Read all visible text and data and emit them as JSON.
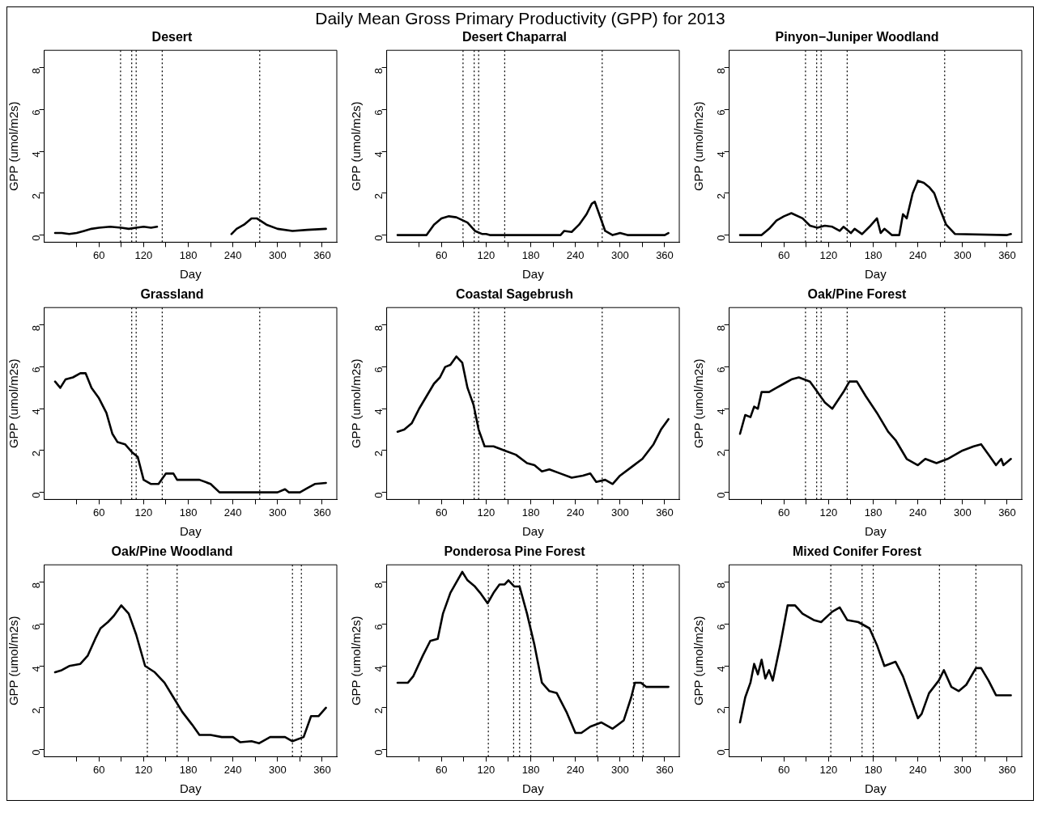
{
  "chart_data": [
    {
      "type": "line",
      "title": "Desert",
      "xlabel": "Day",
      "ylabel": "GPP (umol/m2s)",
      "annotations": [
        "Daily Mean Gross Primary Productivity (GPP) for 2013"
      ],
      "xlim": [
        -13.6,
        379.6
      ],
      "ylim": [
        -0.34,
        8.84
      ],
      "xticks": [
        {
          "value": 30,
          "label": null
        },
        60,
        {
          "value": 90,
          "label": null
        },
        120,
        {
          "value": 150,
          "label": null
        },
        180,
        {
          "value": 210,
          "label": null
        },
        240,
        {
          "value": 270,
          "label": null
        },
        300,
        {
          "value": 330,
          "label": null
        },
        360
      ],
      "yticks": [
        0,
        2,
        4,
        6,
        8
      ],
      "grid": false,
      "legend": false,
      "marker": "none",
      "line_style": "solid",
      "ref_lines": [
        {
          "axis": "x",
          "value": 89,
          "color": "#000000",
          "line_style": "dotted"
        },
        {
          "axis": "x",
          "value": 104,
          "color": "#000000",
          "line_style": "dotted"
        },
        {
          "axis": "x",
          "value": 110,
          "color": "#000000",
          "line_style": "dotted"
        },
        {
          "axis": "x",
          "value": 145,
          "color": "#000000",
          "line_style": "dotted"
        },
        {
          "axis": "x",
          "value": 276,
          "color": "#000000",
          "line_style": "dotted"
        }
      ],
      "x": [
        1,
        10,
        20,
        30,
        40,
        50,
        60,
        75,
        90,
        100,
        110,
        120,
        130,
        138,
        180,
        238,
        245,
        255,
        265,
        272,
        285,
        300,
        320,
        340,
        365
      ],
      "series": [
        {
          "color": "#000000",
          "values": [
            0.1,
            0.1,
            0.05,
            0.1,
            0.2,
            0.3,
            0.35,
            0.4,
            0.35,
            0.3,
            0.35,
            0.4,
            0.35,
            0.4,
            null,
            0.05,
            0.3,
            0.5,
            0.8,
            0.8,
            0.5,
            0.3,
            0.2,
            0.25,
            0.3
          ]
        }
      ]
    },
    {
      "type": "line",
      "title": "Desert Chaparral",
      "xlabel": "Day",
      "ylabel": "GPP (umol/m2s)",
      "xlim": [
        -13.6,
        379.6
      ],
      "ylim": [
        -0.34,
        8.84
      ],
      "xticks": [
        {
          "value": 30,
          "label": null
        },
        60,
        {
          "value": 90,
          "label": null
        },
        120,
        {
          "value": 150,
          "label": null
        },
        180,
        {
          "value": 210,
          "label": null
        },
        240,
        {
          "value": 270,
          "label": null
        },
        300,
        {
          "value": 330,
          "label": null
        },
        360
      ],
      "yticks": [
        0,
        2,
        4,
        6,
        8
      ],
      "grid": false,
      "legend": false,
      "marker": "none",
      "line_style": "solid",
      "ref_lines": [
        {
          "axis": "x",
          "value": 89,
          "color": "#000000",
          "line_style": "dotted"
        },
        {
          "axis": "x",
          "value": 104,
          "color": "#000000",
          "line_style": "dotted"
        },
        {
          "axis": "x",
          "value": 110,
          "color": "#000000",
          "line_style": "dotted"
        },
        {
          "axis": "x",
          "value": 145,
          "color": "#000000",
          "line_style": "dotted"
        },
        {
          "axis": "x",
          "value": 276,
          "color": "#000000",
          "line_style": "dotted"
        }
      ],
      "x": [
        1,
        20,
        40,
        50,
        60,
        70,
        80,
        95,
        105,
        115,
        120,
        125,
        180,
        220,
        225,
        235,
        245,
        255,
        262,
        266,
        272,
        280,
        290,
        300,
        310,
        360,
        365
      ],
      "series": [
        {
          "color": "#000000",
          "values": [
            0,
            0,
            0,
            0.5,
            0.8,
            0.9,
            0.85,
            0.6,
            0.2,
            0.05,
            0.05,
            0,
            0,
            0,
            0.2,
            0.15,
            0.5,
            1.0,
            1.5,
            1.6,
            1.0,
            0.2,
            0,
            0.1,
            0,
            0,
            0.1
          ]
        }
      ]
    },
    {
      "type": "line",
      "title": "Pinyon−Juniper Woodland",
      "xlabel": "Day",
      "ylabel": "GPP (umol/m2s)",
      "xlim": [
        -13.6,
        379.6
      ],
      "ylim": [
        -0.34,
        8.84
      ],
      "xticks": [
        {
          "value": 30,
          "label": null
        },
        60,
        {
          "value": 90,
          "label": null
        },
        120,
        {
          "value": 150,
          "label": null
        },
        180,
        {
          "value": 210,
          "label": null
        },
        240,
        {
          "value": 270,
          "label": null
        },
        300,
        {
          "value": 330,
          "label": null
        },
        360
      ],
      "yticks": [
        0,
        2,
        4,
        6,
        8
      ],
      "grid": false,
      "legend": false,
      "marker": "none",
      "line_style": "solid",
      "ref_lines": [
        {
          "axis": "x",
          "value": 89,
          "color": "#000000",
          "line_style": "dotted"
        },
        {
          "axis": "x",
          "value": 104,
          "color": "#000000",
          "line_style": "dotted"
        },
        {
          "axis": "x",
          "value": 110,
          "color": "#000000",
          "line_style": "dotted"
        },
        {
          "axis": "x",
          "value": 145,
          "color": "#000000",
          "line_style": "dotted"
        },
        {
          "axis": "x",
          "value": 276,
          "color": "#000000",
          "line_style": "dotted"
        }
      ],
      "x": [
        1,
        30,
        40,
        50,
        60,
        70,
        85,
        95,
        105,
        115,
        125,
        135,
        140,
        150,
        155,
        165,
        175,
        185,
        190,
        195,
        205,
        215,
        220,
        225,
        233,
        240,
        248,
        255,
        262,
        268,
        278,
        290,
        360,
        365
      ],
      "series": [
        {
          "color": "#000000",
          "values": [
            0,
            0,
            0.3,
            0.7,
            0.9,
            1.05,
            0.8,
            0.45,
            0.35,
            0.45,
            0.4,
            0.2,
            0.4,
            0.1,
            0.3,
            0.05,
            0.4,
            0.8,
            0.1,
            0.3,
            0,
            0,
            1.0,
            0.8,
            2.0,
            2.6,
            2.5,
            2.3,
            2.0,
            1.4,
            0.5,
            0.05,
            0,
            0.05
          ]
        }
      ]
    },
    {
      "type": "line",
      "title": "Grassland",
      "xlabel": "Day",
      "ylabel": "GPP (umol/m2s)",
      "xlim": [
        -13.6,
        379.6
      ],
      "ylim": [
        -0.34,
        8.84
      ],
      "xticks": [
        {
          "value": 30,
          "label": null
        },
        60,
        {
          "value": 90,
          "label": null
        },
        120,
        {
          "value": 150,
          "label": null
        },
        180,
        {
          "value": 210,
          "label": null
        },
        240,
        {
          "value": 270,
          "label": null
        },
        300,
        {
          "value": 330,
          "label": null
        },
        360
      ],
      "yticks": [
        0,
        2,
        4,
        6,
        8
      ],
      "grid": false,
      "legend": false,
      "marker": "none",
      "line_style": "solid",
      "ref_lines": [
        {
          "axis": "x",
          "value": 104,
          "color": "#000000",
          "line_style": "dotted"
        },
        {
          "axis": "x",
          "value": 110,
          "color": "#000000",
          "line_style": "dotted"
        },
        {
          "axis": "x",
          "value": 145,
          "color": "#000000",
          "line_style": "dotted"
        },
        {
          "axis": "x",
          "value": 276,
          "color": "#000000",
          "line_style": "dotted"
        }
      ],
      "x": [
        1,
        8,
        15,
        25,
        35,
        42,
        50,
        60,
        70,
        78,
        85,
        95,
        105,
        112,
        120,
        130,
        140,
        150,
        160,
        165,
        180,
        195,
        210,
        222,
        300,
        310,
        315,
        330,
        340,
        350,
        365
      ],
      "series": [
        {
          "color": "#000000",
          "values": [
            5.3,
            5.0,
            5.4,
            5.5,
            5.7,
            5.7,
            5.0,
            4.5,
            3.8,
            2.8,
            2.4,
            2.3,
            1.9,
            1.7,
            0.6,
            0.4,
            0.4,
            0.9,
            0.9,
            0.6,
            0.6,
            0.6,
            0.4,
            0,
            0,
            0.15,
            0,
            0,
            0.2,
            0.4,
            0.45
          ]
        }
      ]
    },
    {
      "type": "line",
      "title": "Coastal Sagebrush",
      "xlabel": "Day",
      "ylabel": "GPP (umol/m2s)",
      "xlim": [
        -13.6,
        379.6
      ],
      "ylim": [
        -0.34,
        8.84
      ],
      "xticks": [
        {
          "value": 30,
          "label": null
        },
        60,
        {
          "value": 90,
          "label": null
        },
        120,
        {
          "value": 150,
          "label": null
        },
        180,
        {
          "value": 210,
          "label": null
        },
        240,
        {
          "value": 270,
          "label": null
        },
        300,
        {
          "value": 330,
          "label": null
        },
        360
      ],
      "yticks": [
        0,
        2,
        4,
        6,
        8
      ],
      "grid": false,
      "legend": false,
      "marker": "none",
      "line_style": "solid",
      "ref_lines": [
        {
          "axis": "x",
          "value": 104,
          "color": "#000000",
          "line_style": "dotted"
        },
        {
          "axis": "x",
          "value": 110,
          "color": "#000000",
          "line_style": "dotted"
        },
        {
          "axis": "x",
          "value": 145,
          "color": "#000000",
          "line_style": "dotted"
        },
        {
          "axis": "x",
          "value": 276,
          "color": "#000000",
          "line_style": "dotted"
        }
      ],
      "x": [
        1,
        10,
        20,
        30,
        40,
        50,
        58,
        65,
        72,
        80,
        88,
        95,
        103,
        110,
        118,
        130,
        145,
        160,
        175,
        185,
        195,
        205,
        220,
        235,
        250,
        260,
        268,
        280,
        290,
        300,
        315,
        330,
        345,
        355,
        365
      ],
      "series": [
        {
          "color": "#000000",
          "values": [
            2.9,
            3.0,
            3.3,
            4.0,
            4.6,
            5.2,
            5.5,
            6.0,
            6.1,
            6.5,
            6.2,
            5.0,
            4.2,
            3.0,
            2.2,
            2.2,
            2.0,
            1.8,
            1.4,
            1.3,
            1.0,
            1.1,
            0.9,
            0.7,
            0.8,
            0.9,
            0.5,
            0.6,
            0.4,
            0.8,
            1.2,
            1.6,
            2.3,
            3.0,
            3.5
          ]
        }
      ]
    },
    {
      "type": "line",
      "title": "Oak/Pine Forest",
      "xlabel": "Day",
      "ylabel": "GPP (umol/m2s)",
      "xlim": [
        -13.6,
        379.6
      ],
      "ylim": [
        -0.34,
        8.84
      ],
      "xticks": [
        {
          "value": 30,
          "label": null
        },
        60,
        {
          "value": 90,
          "label": null
        },
        120,
        {
          "value": 150,
          "label": null
        },
        180,
        {
          "value": 210,
          "label": null
        },
        240,
        {
          "value": 270,
          "label": null
        },
        300,
        {
          "value": 330,
          "label": null
        },
        360
      ],
      "yticks": [
        0,
        2,
        4,
        6,
        8
      ],
      "grid": false,
      "legend": false,
      "marker": "none",
      "line_style": "solid",
      "ref_lines": [
        {
          "axis": "x",
          "value": 89,
          "color": "#000000",
          "line_style": "dotted"
        },
        {
          "axis": "x",
          "value": 104,
          "color": "#000000",
          "line_style": "dotted"
        },
        {
          "axis": "x",
          "value": 110,
          "color": "#000000",
          "line_style": "dotted"
        },
        {
          "axis": "x",
          "value": 145,
          "color": "#000000",
          "line_style": "dotted"
        },
        {
          "axis": "x",
          "value": 276,
          "color": "#000000",
          "line_style": "dotted"
        }
      ],
      "x": [
        1,
        8,
        15,
        20,
        25,
        30,
        40,
        50,
        60,
        70,
        80,
        95,
        105,
        115,
        125,
        140,
        148,
        158,
        170,
        185,
        200,
        210,
        225,
        240,
        250,
        265,
        280,
        300,
        315,
        325,
        335,
        345,
        352,
        355,
        365
      ],
      "series": [
        {
          "color": "#000000",
          "values": [
            2.8,
            3.7,
            3.6,
            4.1,
            4.0,
            4.8,
            4.8,
            5.0,
            5.2,
            5.4,
            5.5,
            5.3,
            4.8,
            4.3,
            4.0,
            4.8,
            5.3,
            5.3,
            4.6,
            3.8,
            2.9,
            2.5,
            1.6,
            1.3,
            1.6,
            1.4,
            1.6,
            2.0,
            2.2,
            2.3,
            1.8,
            1.3,
            1.6,
            1.3,
            1.6
          ]
        }
      ]
    },
    {
      "type": "line",
      "title": "Oak/Pine Woodland",
      "xlabel": "Day",
      "ylabel": "GPP (umol/m2s)",
      "xlim": [
        -13.6,
        379.6
      ],
      "ylim": [
        -0.34,
        8.84
      ],
      "xticks": [
        {
          "value": 30,
          "label": null
        },
        60,
        {
          "value": 90,
          "label": null
        },
        120,
        {
          "value": 150,
          "label": null
        },
        180,
        {
          "value": 210,
          "label": null
        },
        240,
        {
          "value": 270,
          "label": null
        },
        300,
        {
          "value": 330,
          "label": null
        },
        360
      ],
      "yticks": [
        0,
        2,
        4,
        6,
        8
      ],
      "grid": false,
      "legend": false,
      "marker": "none",
      "line_style": "solid",
      "ref_lines": [
        {
          "axis": "x",
          "value": 125,
          "color": "#000000",
          "line_style": "dotted"
        },
        {
          "axis": "x",
          "value": 165,
          "color": "#000000",
          "line_style": "dotted"
        },
        {
          "axis": "x",
          "value": 320,
          "color": "#000000",
          "line_style": "dotted"
        },
        {
          "axis": "x",
          "value": 332,
          "color": "#000000",
          "line_style": "dotted"
        }
      ],
      "x": [
        1,
        10,
        20,
        35,
        45,
        55,
        62,
        72,
        80,
        90,
        100,
        110,
        122,
        135,
        148,
        160,
        172,
        185,
        195,
        210,
        225,
        240,
        250,
        265,
        275,
        290,
        310,
        320,
        335,
        345,
        355,
        365
      ],
      "series": [
        {
          "color": "#000000",
          "values": [
            3.7,
            3.8,
            4.0,
            4.1,
            4.5,
            5.3,
            5.8,
            6.1,
            6.4,
            6.9,
            6.5,
            5.5,
            4.0,
            3.7,
            3.2,
            2.5,
            1.8,
            1.2,
            0.7,
            0.7,
            0.6,
            0.6,
            0.35,
            0.4,
            0.3,
            0.6,
            0.6,
            0.4,
            0.6,
            1.6,
            1.6,
            2.0
          ]
        }
      ]
    },
    {
      "type": "line",
      "title": "Ponderosa Pine Forest",
      "xlabel": "Day",
      "ylabel": "GPP (umol/m2s)",
      "xlim": [
        -13.6,
        379.6
      ],
      "ylim": [
        -0.34,
        8.84
      ],
      "xticks": [
        {
          "value": 30,
          "label": null
        },
        60,
        {
          "value": 90,
          "label": null
        },
        120,
        {
          "value": 150,
          "label": null
        },
        180,
        {
          "value": 210,
          "label": null
        },
        240,
        {
          "value": 270,
          "label": null
        },
        300,
        {
          "value": 330,
          "label": null
        },
        360
      ],
      "yticks": [
        0,
        2,
        4,
        6,
        8
      ],
      "grid": false,
      "legend": false,
      "marker": "none",
      "line_style": "solid",
      "ref_lines": [
        {
          "axis": "x",
          "value": 123,
          "color": "#000000",
          "line_style": "dotted"
        },
        {
          "axis": "x",
          "value": 157,
          "color": "#000000",
          "line_style": "dotted"
        },
        {
          "axis": "x",
          "value": 165,
          "color": "#000000",
          "line_style": "dotted"
        },
        {
          "axis": "x",
          "value": 180,
          "color": "#000000",
          "line_style": "dotted"
        },
        {
          "axis": "x",
          "value": 269,
          "color": "#000000",
          "line_style": "dotted"
        },
        {
          "axis": "x",
          "value": 318,
          "color": "#000000",
          "line_style": "dotted"
        },
        {
          "axis": "x",
          "value": 331,
          "color": "#000000",
          "line_style": "dotted"
        }
      ],
      "x": [
        1,
        15,
        22,
        35,
        45,
        55,
        62,
        72,
        80,
        88,
        95,
        105,
        112,
        122,
        130,
        138,
        145,
        150,
        158,
        165,
        175,
        185,
        195,
        205,
        215,
        228,
        240,
        248,
        260,
        275,
        290,
        305,
        315,
        320,
        328,
        335,
        365
      ],
      "series": [
        {
          "color": "#000000",
          "values": [
            3.2,
            3.2,
            3.5,
            4.5,
            5.2,
            5.3,
            6.5,
            7.5,
            8.0,
            8.5,
            8.1,
            7.8,
            7.5,
            7.0,
            7.5,
            7.9,
            7.9,
            8.1,
            7.8,
            7.8,
            6.5,
            5.0,
            3.2,
            2.8,
            2.7,
            1.8,
            0.8,
            0.8,
            1.1,
            1.3,
            1.0,
            1.4,
            2.5,
            3.2,
            3.2,
            3.0,
            3.0
          ]
        }
      ]
    },
    {
      "type": "line",
      "title": "Mixed Conifer Forest",
      "xlabel": "Day",
      "ylabel": "GPP (umol/m2s)",
      "xlim": [
        -13.6,
        379.6
      ],
      "ylim": [
        -0.34,
        8.84
      ],
      "xticks": [
        {
          "value": 30,
          "label": null
        },
        60,
        {
          "value": 90,
          "label": null
        },
        120,
        {
          "value": 150,
          "label": null
        },
        180,
        {
          "value": 210,
          "label": null
        },
        240,
        {
          "value": 270,
          "label": null
        },
        300,
        {
          "value": 330,
          "label": null
        },
        360
      ],
      "yticks": [
        0,
        2,
        4,
        6,
        8
      ],
      "grid": false,
      "legend": false,
      "marker": "none",
      "line_style": "solid",
      "ref_lines": [
        {
          "axis": "x",
          "value": 123,
          "color": "#000000",
          "line_style": "dotted"
        },
        {
          "axis": "x",
          "value": 165,
          "color": "#000000",
          "line_style": "dotted"
        },
        {
          "axis": "x",
          "value": 180,
          "color": "#000000",
          "line_style": "dotted"
        },
        {
          "axis": "x",
          "value": 269,
          "color": "#000000",
          "line_style": "dotted"
        },
        {
          "axis": "x",
          "value": 318,
          "color": "#000000",
          "line_style": "dotted"
        }
      ],
      "x": [
        1,
        8,
        15,
        20,
        25,
        30,
        35,
        40,
        45,
        55,
        65,
        75,
        85,
        100,
        110,
        125,
        135,
        145,
        160,
        175,
        185,
        195,
        210,
        220,
        230,
        240,
        245,
        255,
        268,
        275,
        285,
        295,
        305,
        318,
        325,
        335,
        345,
        365
      ],
      "series": [
        {
          "color": "#000000",
          "values": [
            1.3,
            2.5,
            3.2,
            4.1,
            3.6,
            4.3,
            3.4,
            3.8,
            3.3,
            5.0,
            6.9,
            6.9,
            6.5,
            6.2,
            6.1,
            6.6,
            6.8,
            6.2,
            6.1,
            5.8,
            5.0,
            4.0,
            4.2,
            3.5,
            2.5,
            1.5,
            1.7,
            2.7,
            3.3,
            3.8,
            3.0,
            2.8,
            3.1,
            3.9,
            3.9,
            3.3,
            2.6,
            2.6
          ]
        }
      ]
    }
  ]
}
